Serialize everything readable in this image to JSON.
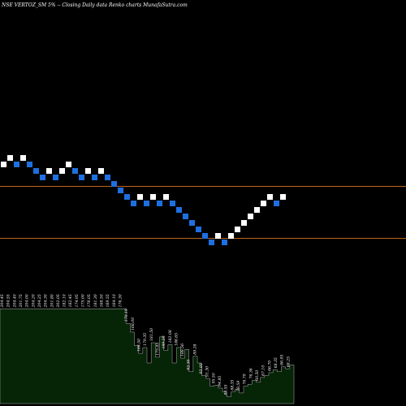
{
  "chart_data": {
    "type": "renko",
    "title": "NSE VERTOZ_SM 5% -- Closing Daily data Renko charts MunafaSutra.com",
    "colors": {
      "background": "#000000",
      "up_brick": "#ffffff",
      "down_brick": "#1e6fe0",
      "reference_line": "#c06418",
      "volume_fill": "#062406",
      "volume_edge": "#d8d8d8"
    },
    "reference_lines": [
      {
        "name": "upper",
        "value": 195
      },
      {
        "name": "lower",
        "value": 187
      }
    ],
    "price_range": [
      148,
      227
    ],
    "bricks": [
      {
        "dir": "up",
        "level": 198
      },
      {
        "dir": "up",
        "level": 199
      },
      {
        "dir": "down",
        "level": 198
      },
      {
        "dir": "up",
        "level": 199
      },
      {
        "dir": "down",
        "level": 198
      },
      {
        "dir": "down",
        "level": 197
      },
      {
        "dir": "down",
        "level": 196
      },
      {
        "dir": "up",
        "level": 197
      },
      {
        "dir": "down",
        "level": 196
      },
      {
        "dir": "up",
        "level": 197
      },
      {
        "dir": "up",
        "level": 198
      },
      {
        "dir": "down",
        "level": 197
      },
      {
        "dir": "down",
        "level": 196
      },
      {
        "dir": "up",
        "level": 197
      },
      {
        "dir": "down",
        "level": 196
      },
      {
        "dir": "up",
        "level": 197
      },
      {
        "dir": "down",
        "level": 196
      },
      {
        "dir": "down",
        "level": 195
      },
      {
        "dir": "down",
        "level": 194
      },
      {
        "dir": "down",
        "level": 193
      },
      {
        "dir": "down",
        "level": 192
      },
      {
        "dir": "up",
        "level": 193
      },
      {
        "dir": "down",
        "level": 192
      },
      {
        "dir": "up",
        "level": 193
      },
      {
        "dir": "down",
        "level": 192
      },
      {
        "dir": "up",
        "level": 193
      },
      {
        "dir": "down",
        "level": 192
      },
      {
        "dir": "down",
        "level": 191
      },
      {
        "dir": "down",
        "level": 190
      },
      {
        "dir": "down",
        "level": 189
      },
      {
        "dir": "down",
        "level": 188
      },
      {
        "dir": "down",
        "level": 187
      },
      {
        "dir": "down",
        "level": 186
      },
      {
        "dir": "up",
        "level": 187
      },
      {
        "dir": "down",
        "level": 186
      },
      {
        "dir": "up",
        "level": 187
      },
      {
        "dir": "up",
        "level": 188
      },
      {
        "dir": "up",
        "level": 189
      },
      {
        "dir": "up",
        "level": 190
      },
      {
        "dir": "up",
        "level": 191
      },
      {
        "dir": "up",
        "level": 192
      },
      {
        "dir": "up",
        "level": 193
      },
      {
        "dir": "down",
        "level": 192
      },
      {
        "dir": "up",
        "level": 193
      }
    ],
    "volume_labels": [
      "204.45",
      "204.55",
      "204.40",
      "201.75",
      "204.00",
      "204.20",
      "204.25",
      "204.30",
      "201.80",
      "202.05",
      "182.10",
      "182.45",
      "174.95",
      "175.00",
      "176.05",
      "181.30",
      "168.50",
      "169.55",
      "164.10",
      "176.30",
      "170.19",
      "168.00",
      "186.50",
      "179.35",
      "181.50",
      "175.85",
      "189.20",
      "182.08",
      "186.65",
      "188.56",
      "92.30",
      "89.28",
      "93.80",
      "91.30",
      "95.50",
      "94.85",
      "89.55",
      "88.35",
      "78.59",
      "76.79",
      "76.36",
      "60.50",
      "67.10",
      "66.70",
      "68.35",
      "66.95",
      "68.25",
      "67.40",
      "70.30",
      "71.30",
      "72.05",
      "72.10",
      "69.35",
      "72.40",
      "69.50"
    ],
    "volume_values": [
      0.98,
      0.98,
      0.98,
      0.98,
      0.98,
      0.98,
      0.98,
      0.98,
      0.98,
      0.98,
      0.98,
      0.98,
      0.98,
      0.98,
      0.98,
      0.98,
      0.98,
      0.98,
      0.98,
      0.98,
      0.98,
      0.98,
      0.98,
      0.98,
      0.98,
      0.98,
      0.98,
      0.98,
      0.98,
      0.98,
      0.83,
      0.74,
      0.6,
      0.52,
      0.58,
      0.42,
      0.63,
      0.48,
      0.69,
      0.55,
      0.61,
      0.42,
      0.58,
      0.47,
      0.56,
      0.33,
      0.49,
      0.42,
      0.29,
      0.26,
      0.18,
      0.19,
      0.16,
      0.12,
      0.07,
      0.12,
      0.15,
      0.11,
      0.18,
      0.2,
      0.24,
      0.22,
      0.27,
      0.29,
      0.32,
      0.35,
      0.33,
      0.38,
      0.36,
      0.4
    ]
  }
}
